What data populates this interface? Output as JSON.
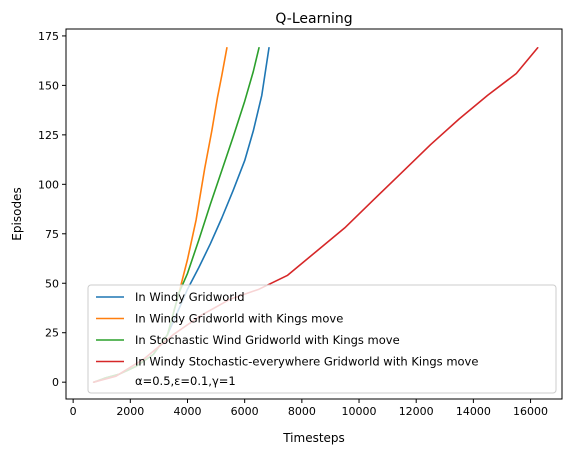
{
  "chart_data": {
    "type": "line",
    "title": "Q-Learning",
    "xlabel": "Timesteps",
    "ylabel": "Episodes",
    "xlim": [
      -250,
      17100
    ],
    "ylim": [
      -8.5,
      178.5
    ],
    "xticks": [
      0,
      2000,
      4000,
      6000,
      8000,
      10000,
      12000,
      14000,
      16000
    ],
    "yticks": [
      0,
      25,
      50,
      75,
      100,
      125,
      150,
      175
    ],
    "grid": false,
    "legend_position": "lower-right",
    "legend_note": "α=0.5,ε=0.1,γ=1",
    "series": [
      {
        "name": "In Windy Gridworld",
        "color": "#1f77b4",
        "x": [
          720,
          1100,
          1600,
          2200,
          2800,
          3300,
          3700,
          4000,
          4400,
          4800,
          5200,
          5600,
          6000,
          6300,
          6600,
          6850
        ],
        "y": [
          0,
          2,
          4,
          8,
          14,
          24,
          37,
          47,
          58,
          70,
          83,
          97,
          112,
          127,
          145,
          169
        ]
      },
      {
        "name": "In Windy Gridworld with Kings move",
        "color": "#ff7f0e",
        "x": [
          720,
          1100,
          1600,
          2200,
          2800,
          3300,
          3700,
          4000,
          4300,
          4600,
          4850,
          5050,
          5200,
          5380
        ],
        "y": [
          0,
          2,
          4,
          8,
          14,
          24,
          45,
          62,
          82,
          108,
          127,
          144,
          155,
          169
        ]
      },
      {
        "name": "In Stochastic Wind Gridworld with Kings move",
        "color": "#2ca02c",
        "x": [
          720,
          1100,
          1600,
          2200,
          2800,
          3300,
          3700,
          4000,
          4400,
          4800,
          5200,
          5600,
          6000,
          6300,
          6500
        ],
        "y": [
          0,
          2,
          4,
          8,
          14,
          24,
          45,
          55,
          72,
          90,
          107,
          124,
          142,
          157,
          169
        ]
      },
      {
        "name": "In Windy Stochastic-everywhere Gridworld with Kings move",
        "color": "#d62728",
        "x": [
          720,
          1500,
          2500,
          3500,
          4500,
          5500,
          6500,
          7500,
          8500,
          9500,
          10500,
          11500,
          12500,
          13500,
          14500,
          15500,
          16250
        ],
        "y": [
          0,
          3,
          12,
          24,
          34,
          42,
          47,
          54,
          66,
          78,
          92,
          106,
          120,
          133,
          145,
          156,
          169
        ]
      }
    ]
  }
}
